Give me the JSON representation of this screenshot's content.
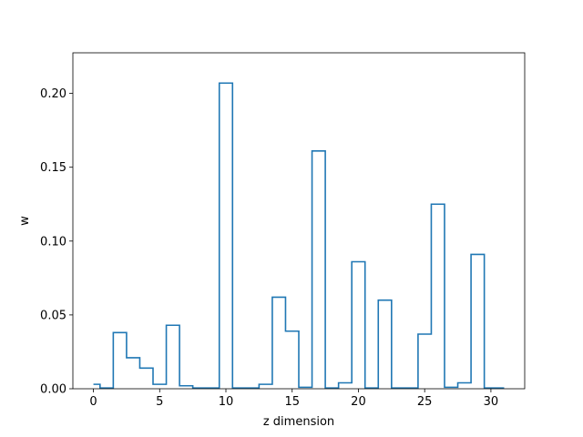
{
  "chart_data": {
    "type": "line",
    "drawstyle": "steps-mid",
    "xlabel": "z dimension",
    "ylabel": "w",
    "xlim": [
      -1.55,
      32.55
    ],
    "ylim": [
      0,
      0.2275
    ],
    "xticks": [
      0,
      5,
      10,
      15,
      20,
      25,
      30
    ],
    "xtick_labels": [
      "0",
      "5",
      "10",
      "15",
      "20",
      "25",
      "30"
    ],
    "yticks": [
      0.0,
      0.05,
      0.1,
      0.15,
      0.2
    ],
    "ytick_labels": [
      "0.00",
      "0.05",
      "0.10",
      "0.15",
      "0.20"
    ],
    "grid": false,
    "series": [
      {
        "color": "#1f77b4",
        "x": [
          0,
          1,
          2,
          3,
          4,
          5,
          6,
          7,
          8,
          9,
          10,
          11,
          12,
          13,
          14,
          15,
          16,
          17,
          18,
          19,
          20,
          21,
          22,
          23,
          24,
          25,
          26,
          27,
          28,
          29,
          30,
          31
        ],
        "values": [
          0.003,
          0.0005,
          0.038,
          0.021,
          0.014,
          0.003,
          0.043,
          0.002,
          0.0005,
          0.0005,
          0.207,
          0.0005,
          0.0005,
          0.003,
          0.062,
          0.039,
          0.001,
          0.161,
          0.0005,
          0.004,
          0.086,
          0.0005,
          0.06,
          0.0005,
          0.0005,
          0.037,
          0.125,
          0.001,
          0.004,
          0.091,
          0.0005,
          0.0005
        ]
      }
    ]
  }
}
